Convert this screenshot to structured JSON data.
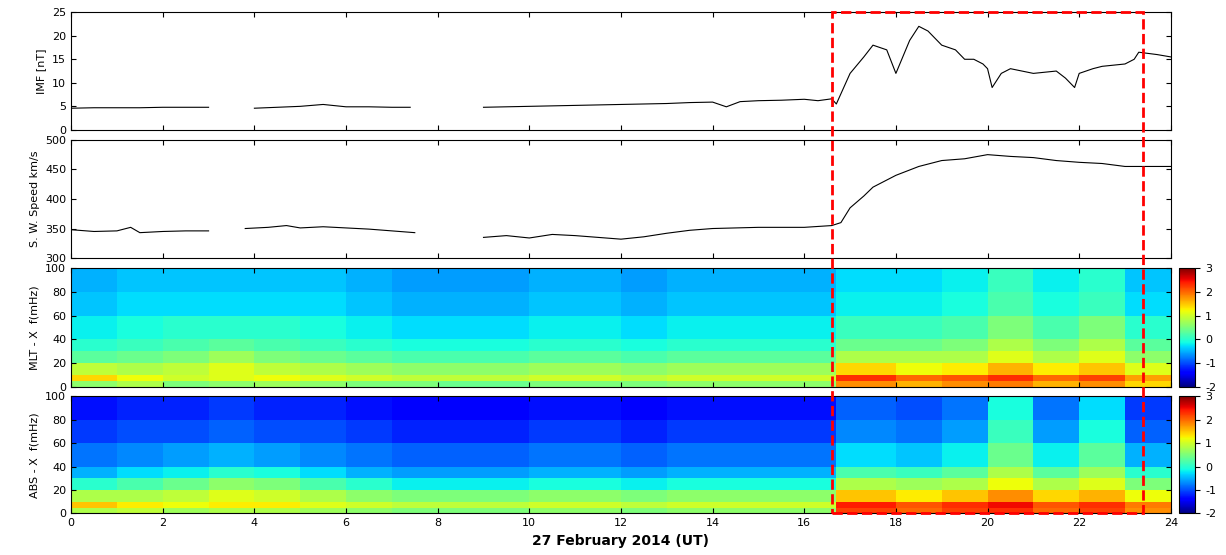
{
  "chart_data": [
    {
      "type": "line",
      "y_label": "IMF [nT]",
      "tick_labels": "y",
      "xlim": [
        0,
        24
      ],
      "xticks": [
        0,
        2,
        4,
        6,
        8,
        10,
        12,
        14,
        16,
        18,
        20,
        22,
        24
      ],
      "ylim": [
        0,
        25
      ],
      "yticks": [
        0,
        5,
        10,
        15,
        20,
        25
      ],
      "color": "black",
      "x": [
        0,
        0.5,
        1,
        1.5,
        2,
        2.5,
        3,
        3.5,
        4,
        4.5,
        5,
        5.5,
        6,
        6.5,
        7,
        7.4,
        8,
        9,
        9.5,
        10,
        10.5,
        11,
        11.5,
        12,
        12.5,
        13,
        13.5,
        14,
        14.3,
        14.6,
        15,
        15.5,
        16,
        16.3,
        16.6,
        16.7,
        17,
        17.3,
        17.5,
        17.8,
        18,
        18.3,
        18.5,
        18.7,
        19,
        19.3,
        19.5,
        19.7,
        19.9,
        20,
        20.1,
        20.3,
        20.5,
        21,
        21.5,
        21.7,
        21.9,
        22,
        22.3,
        22.5,
        23,
        23.2,
        23.3,
        23.7,
        24
      ],
      "values": [
        4.6,
        4.7,
        4.7,
        4.7,
        4.8,
        4.8,
        4.8,
        null,
        4.6,
        4.8,
        5.0,
        5.4,
        4.9,
        4.9,
        4.8,
        4.8,
        null,
        4.8,
        4.9,
        5.0,
        5.1,
        5.2,
        5.3,
        5.4,
        5.5,
        5.6,
        5.8,
        5.9,
        4.9,
        6.0,
        6.2,
        6.3,
        6.5,
        6.2,
        6.6,
        5.5,
        12.0,
        15.5,
        18.0,
        17.0,
        12.0,
        19.0,
        22.0,
        21.0,
        18.0,
        17.0,
        15.0,
        15.0,
        14.0,
        13.0,
        9.0,
        12.0,
        13.0,
        12.0,
        12.5,
        11.0,
        9.0,
        12.0,
        13.0,
        13.5,
        14.0,
        15.0,
        16.5,
        16.0,
        15.5
      ]
    },
    {
      "type": "line",
      "y_label": "S. W. Speed km/s",
      "tick_labels": "y",
      "xlim": [
        0,
        24
      ],
      "xticks": [
        0,
        2,
        4,
        6,
        8,
        10,
        12,
        14,
        16,
        18,
        20,
        22,
        24
      ],
      "ylim": [
        300,
        500
      ],
      "yticks": [
        300,
        350,
        400,
        450,
        500
      ],
      "color": "black",
      "x": [
        0,
        0.5,
        1,
        1.3,
        1.5,
        2,
        2.5,
        3,
        3.4,
        3.8,
        4.3,
        4.7,
        5,
        5.5,
        6,
        6.5,
        7,
        7.5,
        8,
        9,
        9.5,
        10,
        10.5,
        11,
        11.5,
        12,
        12.5,
        13,
        13.5,
        14,
        15,
        16,
        16.6,
        16.8,
        17,
        17.3,
        17.5,
        18,
        18.5,
        19,
        19.5,
        20,
        20.5,
        21,
        21.5,
        22,
        22.5,
        23,
        23.5,
        24
      ],
      "values": [
        348,
        345,
        346,
        352,
        343,
        345,
        346,
        346,
        null,
        350,
        352,
        355,
        351,
        353,
        351,
        349,
        346,
        343,
        null,
        335,
        338,
        334,
        340,
        338,
        335,
        332,
        336,
        342,
        347,
        350,
        352,
        352,
        355,
        360,
        385,
        405,
        420,
        440,
        455,
        465,
        468,
        475,
        472,
        470,
        465,
        462,
        460,
        455,
        455,
        455
      ]
    },
    {
      "type": "heatmap",
      "y_label": "MLT - X  f(mHz)",
      "tick_labels": "y",
      "xlim": [
        0,
        24
      ],
      "xticks": [
        0,
        2,
        4,
        6,
        8,
        10,
        12,
        14,
        16,
        18,
        20,
        22,
        24
      ],
      "ylim": [
        0,
        100
      ],
      "yticks": [
        0,
        20,
        40,
        60,
        80,
        100
      ],
      "x_edges": [
        0,
        1,
        2,
        3,
        4,
        5,
        6,
        7,
        8,
        9,
        10,
        11,
        12,
        13,
        14,
        15,
        16,
        16.7,
        18,
        19,
        20,
        21,
        22,
        23,
        24
      ],
      "y_edges": [
        0,
        5,
        10,
        20,
        30,
        40,
        60,
        80,
        100
      ],
      "colorbar": {
        "range": [
          -2,
          3
        ],
        "ticks": [
          -2,
          -1,
          0,
          1,
          2,
          3
        ]
      },
      "cells": [
        [
          0.6,
          0.8,
          0.5,
          0.6,
          0.7,
          0.6,
          0.5,
          0.5,
          0.4,
          0.4,
          0.5,
          0.5,
          0.5,
          0.6,
          0.6,
          0.6,
          0.6,
          1.8,
          1.6,
          1.8,
          1.9,
          1.6,
          1.8,
          1.4
        ],
        [
          1.4,
          1.2,
          1.0,
          1.1,
          1.2,
          1.1,
          1.0,
          0.9,
          0.9,
          0.9,
          1.0,
          1.0,
          0.9,
          1.0,
          1.0,
          1.0,
          1.0,
          2.3,
          2.0,
          2.1,
          2.3,
          2.0,
          2.2,
          1.7
        ],
        [
          0.9,
          0.8,
          0.9,
          1.1,
          0.9,
          0.8,
          0.7,
          0.6,
          0.6,
          0.6,
          0.7,
          0.7,
          0.6,
          0.7,
          0.7,
          0.7,
          0.7,
          1.4,
          1.2,
          1.3,
          1.6,
          1.3,
          1.5,
          1.1
        ],
        [
          0.3,
          0.4,
          0.5,
          0.7,
          0.5,
          0.4,
          0.3,
          0.2,
          0.2,
          0.2,
          0.3,
          0.3,
          0.2,
          0.3,
          0.3,
          0.3,
          0.3,
          0.8,
          0.8,
          0.8,
          1.1,
          0.8,
          1.1,
          0.6
        ],
        [
          0.0,
          0.1,
          0.2,
          0.3,
          0.2,
          0.1,
          0.0,
          -0.1,
          -0.1,
          -0.1,
          0.0,
          0.0,
          -0.1,
          0.0,
          0.0,
          0.0,
          0.0,
          0.4,
          0.4,
          0.5,
          0.8,
          0.5,
          0.8,
          0.3
        ],
        [
          -0.2,
          -0.1,
          0.0,
          0.0,
          0.0,
          -0.1,
          -0.2,
          -0.3,
          -0.3,
          -0.3,
          -0.2,
          -0.2,
          -0.3,
          -0.2,
          -0.2,
          -0.2,
          -0.2,
          0.1,
          0.1,
          0.2,
          0.5,
          0.2,
          0.5,
          0.0
        ],
        [
          -0.4,
          -0.3,
          -0.3,
          -0.3,
          -0.3,
          -0.3,
          -0.4,
          -0.5,
          -0.5,
          -0.5,
          -0.4,
          -0.4,
          -0.5,
          -0.4,
          -0.4,
          -0.4,
          -0.4,
          -0.2,
          -0.2,
          -0.1,
          0.2,
          -0.1,
          0.1,
          -0.3
        ],
        [
          -0.5,
          -0.4,
          -0.4,
          -0.4,
          -0.4,
          -0.4,
          -0.5,
          -0.6,
          -0.6,
          -0.6,
          -0.5,
          -0.5,
          -0.6,
          -0.5,
          -0.5,
          -0.5,
          -0.5,
          -0.3,
          -0.3,
          -0.2,
          0.1,
          -0.2,
          0.0,
          -0.4
        ]
      ]
    },
    {
      "type": "heatmap",
      "y_label": "ABS - X  f(mHz)",
      "x_label": "27 February 2014 (UT)",
      "xlim": [
        0,
        24
      ],
      "xticks": [
        0,
        2,
        4,
        6,
        8,
        10,
        12,
        14,
        16,
        18,
        20,
        22,
        24
      ],
      "ylim": [
        0,
        100
      ],
      "yticks": [
        0,
        20,
        40,
        60,
        80,
        100
      ],
      "x_edges": [
        0,
        1,
        2,
        3,
        4,
        5,
        6,
        7,
        8,
        9,
        10,
        11,
        12,
        13,
        14,
        15,
        16,
        16.7,
        18,
        19,
        20,
        21,
        22,
        23,
        24
      ],
      "y_edges": [
        0,
        5,
        10,
        20,
        30,
        40,
        60,
        80,
        100
      ],
      "colorbar": {
        "range": [
          -2,
          3
        ],
        "ticks": [
          -2,
          -1,
          0,
          1,
          2,
          3
        ]
      },
      "cells": [
        [
          0.8,
          0.9,
          0.7,
          0.8,
          0.8,
          0.7,
          0.6,
          0.5,
          0.5,
          0.5,
          0.6,
          0.6,
          0.5,
          0.6,
          0.6,
          0.6,
          0.6,
          2.2,
          2.0,
          2.2,
          2.3,
          2.0,
          2.2,
          1.8
        ],
        [
          1.5,
          1.3,
          1.2,
          1.3,
          1.3,
          1.1,
          1.0,
          0.9,
          0.9,
          0.9,
          1.0,
          1.0,
          0.9,
          1.0,
          1.0,
          1.0,
          1.0,
          2.4,
          2.1,
          2.3,
          2.5,
          2.1,
          2.3,
          1.9
        ],
        [
          0.8,
          0.8,
          0.9,
          1.1,
          1.0,
          0.8,
          0.6,
          0.5,
          0.5,
          0.5,
          0.6,
          0.6,
          0.5,
          0.6,
          0.6,
          0.6,
          0.6,
          1.5,
          1.3,
          1.5,
          1.8,
          1.4,
          1.6,
          1.2
        ],
        [
          0.0,
          0.2,
          0.4,
          0.6,
          0.5,
          0.2,
          0.0,
          -0.2,
          -0.2,
          -0.2,
          -0.1,
          -0.1,
          -0.2,
          -0.1,
          -0.1,
          -0.1,
          -0.1,
          0.8,
          0.7,
          0.8,
          1.2,
          0.8,
          1.1,
          0.5
        ],
        [
          -0.5,
          -0.3,
          -0.2,
          0.0,
          -0.1,
          -0.3,
          -0.5,
          -0.6,
          -0.6,
          -0.6,
          -0.5,
          -0.5,
          -0.6,
          -0.5,
          -0.5,
          -0.5,
          -0.5,
          0.2,
          0.1,
          0.3,
          0.8,
          0.3,
          0.7,
          0.0
        ],
        [
          -0.8,
          -0.7,
          -0.6,
          -0.5,
          -0.6,
          -0.7,
          -0.8,
          -0.9,
          -0.9,
          -0.9,
          -0.8,
          -0.8,
          -0.9,
          -0.8,
          -0.8,
          -0.8,
          -0.8,
          -0.3,
          -0.4,
          -0.2,
          0.4,
          -0.2,
          0.3,
          -0.5
        ],
        [
          -1.1,
          -1.0,
          -1.0,
          -0.9,
          -1.0,
          -1.0,
          -1.1,
          -1.2,
          -1.2,
          -1.2,
          -1.1,
          -1.1,
          -1.2,
          -1.1,
          -1.1,
          -1.1,
          -1.1,
          -0.7,
          -0.8,
          -0.6,
          0.1,
          -0.6,
          -0.1,
          -0.9
        ],
        [
          -1.3,
          -1.2,
          -1.2,
          -1.1,
          -1.2,
          -1.2,
          -1.3,
          -1.4,
          -1.4,
          -1.4,
          -1.3,
          -1.3,
          -1.4,
          -1.3,
          -1.3,
          -1.3,
          -1.3,
          -0.9,
          -1.0,
          -0.8,
          -0.1,
          -0.8,
          -0.3,
          -1.1
        ]
      ]
    }
  ],
  "highlight": {
    "x": [
      16.6,
      23.4
    ],
    "color": "red",
    "line_style": "dashed"
  }
}
